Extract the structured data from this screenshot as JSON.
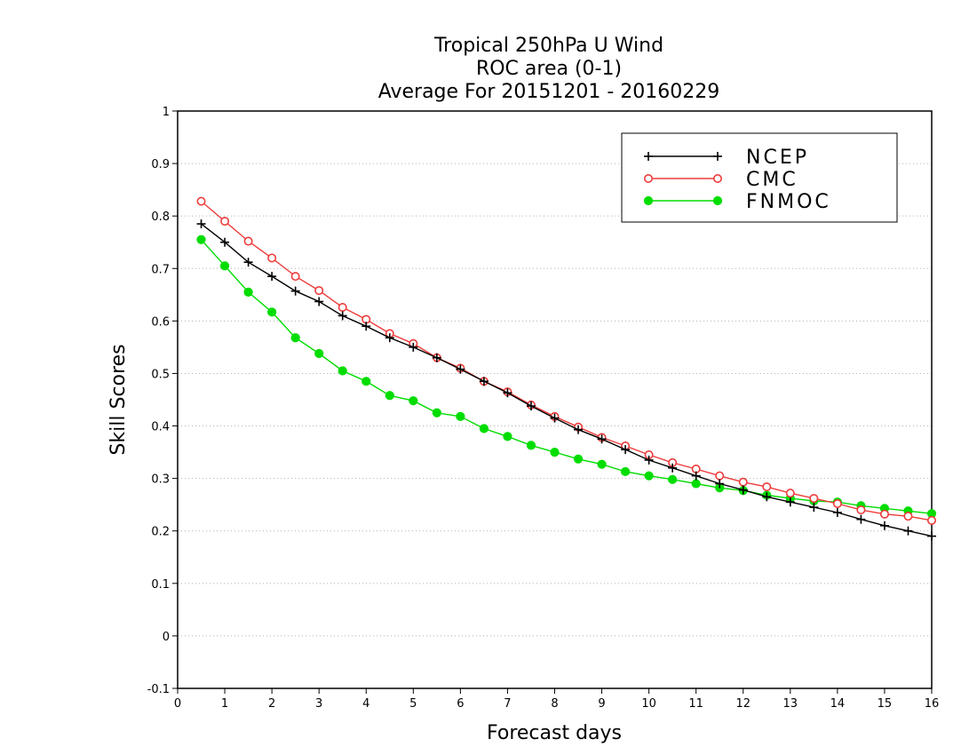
{
  "chart_data": {
    "type": "line",
    "title": [
      "Tropical 250hPa U Wind",
      "ROC area (0-1)",
      "Average For 20151201 - 20160229"
    ],
    "xlabel": "Forecast days",
    "ylabel": "Skill Scores",
    "xlim": [
      0,
      16
    ],
    "ylim": [
      -0.1,
      1
    ],
    "xticks": [
      "0",
      "1",
      "2",
      "3",
      "4",
      "5",
      "6",
      "7",
      "8",
      "9",
      "10",
      "11",
      "12",
      "13",
      "14",
      "15",
      "16"
    ],
    "yticks": [
      "-0.1",
      "0",
      "0.1",
      "0.2",
      "0.3",
      "0.4",
      "0.5",
      "0.6",
      "0.7",
      "0.8",
      "0.9",
      "1"
    ],
    "grid": "horizontal dotted",
    "legend_position": "top-right",
    "x": [
      0.5,
      1,
      1.5,
      2,
      2.5,
      3,
      3.5,
      4,
      4.5,
      5,
      5.5,
      6,
      6.5,
      7,
      7.5,
      8,
      8.5,
      9,
      9.5,
      10,
      10.5,
      11,
      11.5,
      12,
      12.5,
      13,
      13.5,
      14,
      14.5,
      15,
      15.5,
      16
    ],
    "series": [
      {
        "name": "NCEP",
        "color": "#000000",
        "marker": "plus",
        "values": [
          0.785,
          0.75,
          0.712,
          0.685,
          0.657,
          0.637,
          0.61,
          0.59,
          0.568,
          0.55,
          0.53,
          0.508,
          0.485,
          0.463,
          0.438,
          0.415,
          0.393,
          0.375,
          0.355,
          0.335,
          0.32,
          0.305,
          0.29,
          0.278,
          0.265,
          0.255,
          0.245,
          0.235,
          0.222,
          0.21,
          0.2,
          0.19
        ]
      },
      {
        "name": "CMC",
        "color": "#ee3b3b",
        "marker": "open-circle",
        "values": [
          0.828,
          0.79,
          0.752,
          0.72,
          0.685,
          0.658,
          0.626,
          0.603,
          0.576,
          0.557,
          0.53,
          0.51,
          0.485,
          0.465,
          0.44,
          0.418,
          0.398,
          0.378,
          0.362,
          0.345,
          0.33,
          0.318,
          0.305,
          0.293,
          0.284,
          0.272,
          0.262,
          0.252,
          0.24,
          0.232,
          0.228,
          0.22
        ]
      },
      {
        "name": "FNMOC",
        "color": "#00dd00",
        "marker": "filled-circle",
        "values": [
          0.755,
          0.705,
          0.655,
          0.617,
          0.568,
          0.538,
          0.505,
          0.485,
          0.458,
          0.448,
          0.425,
          0.418,
          0.395,
          0.38,
          0.363,
          0.35,
          0.337,
          0.327,
          0.313,
          0.305,
          0.298,
          0.29,
          0.282,
          0.277,
          0.268,
          0.262,
          0.257,
          0.255,
          0.248,
          0.243,
          0.238,
          0.233
        ]
      }
    ]
  }
}
